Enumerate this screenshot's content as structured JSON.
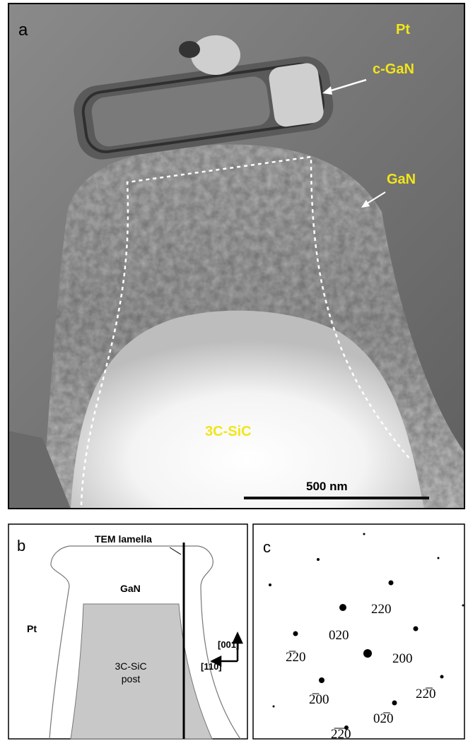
{
  "panel_a": {
    "label": "a",
    "pt": "Pt",
    "c_gan": "c-GaN",
    "gan": "GaN",
    "sic": "3C-SiC",
    "scale_bar": "500 nm"
  },
  "panel_b": {
    "label": "b",
    "lamella": "TEM lamella",
    "gan": "GaN",
    "pt": "Pt",
    "post": [
      "3C-SiC",
      "post"
    ],
    "dir_up": "[001]",
    "dir_left": "[11̅0]"
  },
  "panel_c": {
    "label": "c",
    "reflections": [
      "220",
      "020",
      "2̅20",
      "200",
      "2̅00",
      "22̅0",
      "02̅0",
      "2̅2̅0"
    ]
  }
}
